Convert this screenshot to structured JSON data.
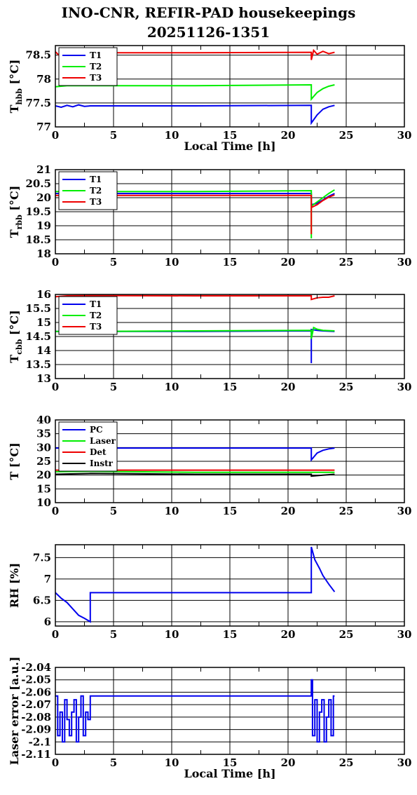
{
  "page": {
    "title_line1": "INO-CNR, REFIR-PAD housekeepings",
    "title_line2": "20251126-1351"
  },
  "chart_data": [
    {
      "type": "line",
      "ylabel": "T_hbb [°C]",
      "ylabel_main": "T",
      "ylabel_sub": "hbb",
      "ylabel_rest": "[°C]",
      "xlabel": "Local Time [h]",
      "xlim": [
        0,
        30
      ],
      "ylim": [
        77,
        78.7
      ],
      "yticks": [
        77,
        77.5,
        78,
        78.5
      ],
      "ytick_labels": [
        "77",
        "77.5",
        "78",
        "78.5"
      ],
      "xticks": [
        0,
        5,
        10,
        15,
        20,
        25,
        30
      ],
      "xtick_labels": [
        "0",
        "5",
        "10",
        "15",
        "20",
        "25",
        "30"
      ],
      "grid": true,
      "legend": "top-left",
      "series": [
        {
          "name": "T1",
          "color": "#0000ee",
          "points": [
            [
              0,
              77.44
            ],
            [
              0.5,
              77.41
            ],
            [
              1,
              77.45
            ],
            [
              1.5,
              77.42
            ],
            [
              2,
              77.46
            ],
            [
              2.5,
              77.43
            ],
            [
              3,
              77.44
            ],
            [
              12,
              77.44
            ],
            [
              22,
              77.45
            ],
            [
              22,
              77.08
            ],
            [
              22.5,
              77.25
            ],
            [
              23,
              77.37
            ],
            [
              23.5,
              77.42
            ],
            [
              24,
              77.45
            ]
          ]
        },
        {
          "name": "T2",
          "color": "#00ee00",
          "points": [
            [
              0,
              77.84
            ],
            [
              0.5,
              77.85
            ],
            [
              1,
              77.86
            ],
            [
              2,
              77.86
            ],
            [
              3,
              77.86
            ],
            [
              12,
              77.86
            ],
            [
              22,
              77.88
            ],
            [
              22,
              77.58
            ],
            [
              22.5,
              77.72
            ],
            [
              23,
              77.8
            ],
            [
              23.5,
              77.85
            ],
            [
              24,
              77.88
            ]
          ]
        },
        {
          "name": "T3",
          "color": "#ee0000",
          "points": [
            [
              0,
              78.57
            ],
            [
              0.3,
              78.5
            ],
            [
              0.6,
              78.55
            ],
            [
              1,
              78.55
            ],
            [
              3,
              78.55
            ],
            [
              12,
              78.55
            ],
            [
              22,
              78.56
            ],
            [
              22,
              78.4
            ],
            [
              22.2,
              78.6
            ],
            [
              22.5,
              78.52
            ],
            [
              23,
              78.58
            ],
            [
              23.5,
              78.53
            ],
            [
              24,
              78.56
            ]
          ]
        }
      ]
    },
    {
      "type": "line",
      "ylabel": "T_rbb [°C]",
      "ylabel_main": "T",
      "ylabel_sub": "rbb",
      "ylabel_rest": "[°C]",
      "xlabel": "",
      "xlim": [
        0,
        30
      ],
      "ylim": [
        18,
        21
      ],
      "yticks": [
        18,
        18.5,
        19,
        19.5,
        20,
        20.5,
        21
      ],
      "ytick_labels": [
        "18",
        "18.5",
        "19",
        "19.5",
        "20",
        "20.5",
        "21"
      ],
      "xticks": [
        0,
        5,
        10,
        15,
        20,
        25,
        30
      ],
      "xtick_labels": [
        "0",
        "5",
        "10",
        "15",
        "20",
        "25",
        "30"
      ],
      "grid": true,
      "legend": "top-left",
      "series": [
        {
          "name": "T1",
          "color": "#0000ee",
          "points": [
            [
              0,
              20.15
            ],
            [
              3,
              20.15
            ],
            [
              12,
              20.15
            ],
            [
              22,
              20.15
            ],
            [
              22,
              19.75
            ],
            [
              22.5,
              19.8
            ],
            [
              23,
              19.92
            ],
            [
              23.5,
              20.05
            ],
            [
              24,
              20.15
            ]
          ]
        },
        {
          "name": "T2",
          "color": "#00ee00",
          "points": [
            [
              0,
              20.22
            ],
            [
              1,
              20.22
            ],
            [
              2,
              20.9
            ],
            [
              3,
              20.9
            ],
            [
              3,
              20.22
            ],
            [
              12,
              20.22
            ],
            [
              22,
              20.25
            ],
            [
              22,
              18.55
            ],
            [
              22,
              19.7
            ],
            [
              22.5,
              19.85
            ],
            [
              23,
              20.0
            ],
            [
              23.5,
              20.15
            ],
            [
              24,
              20.28
            ]
          ]
        },
        {
          "name": "T3",
          "color": "#ee0000",
          "points": [
            [
              0,
              20.08
            ],
            [
              3,
              20.08
            ],
            [
              12,
              20.08
            ],
            [
              22,
              20.08
            ],
            [
              22,
              18.7
            ],
            [
              22,
              19.65
            ],
            [
              22.5,
              19.75
            ],
            [
              23,
              19.9
            ],
            [
              23.5,
              20.02
            ],
            [
              24,
              20.1
            ]
          ]
        }
      ]
    },
    {
      "type": "line",
      "ylabel": "T_cbb [°C]",
      "ylabel_main": "T",
      "ylabel_sub": "cbb",
      "ylabel_rest": "[°C]",
      "xlabel": "",
      "xlim": [
        0,
        30
      ],
      "ylim": [
        13,
        16
      ],
      "yticks": [
        13,
        13.5,
        14,
        14.5,
        15,
        15.5,
        16
      ],
      "ytick_labels": [
        "13",
        "13.5",
        "14",
        "14.5",
        "15",
        "15.5",
        "16"
      ],
      "xticks": [
        0,
        5,
        10,
        15,
        20,
        25,
        30
      ],
      "xtick_labels": [
        "0",
        "5",
        "10",
        "15",
        "20",
        "25",
        "30"
      ],
      "grid": true,
      "legend": "top-left",
      "series": [
        {
          "name": "T1",
          "color": "#0000ee",
          "points": [
            [
              0,
              14.68
            ],
            [
              3,
              14.68
            ],
            [
              12,
              14.68
            ],
            [
              22,
              14.7
            ],
            [
              22,
              13.55
            ],
            [
              22,
              14.75
            ],
            [
              22.5,
              14.72
            ],
            [
              23,
              14.7
            ],
            [
              24,
              14.68
            ]
          ]
        },
        {
          "name": "T2",
          "color": "#00ee00",
          "points": [
            [
              0,
              14.68
            ],
            [
              3,
              14.68
            ],
            [
              12,
              14.7
            ],
            [
              22,
              14.72
            ],
            [
              22,
              14.42
            ],
            [
              22.2,
              14.82
            ],
            [
              22.5,
              14.76
            ],
            [
              23,
              14.72
            ],
            [
              24,
              14.7
            ]
          ]
        },
        {
          "name": "T3",
          "color": "#ee0000",
          "points": [
            [
              0,
              15.92
            ],
            [
              1,
              15.95
            ],
            [
              3,
              15.96
            ],
            [
              12,
              15.95
            ],
            [
              22,
              15.95
            ],
            [
              22,
              15.82
            ],
            [
              22.5,
              15.88
            ],
            [
              23,
              15.9
            ],
            [
              23.5,
              15.9
            ],
            [
              24,
              15.95
            ]
          ]
        }
      ]
    },
    {
      "type": "line",
      "ylabel": "T [°C]",
      "ylabel_main": "T",
      "ylabel_sub": "",
      "ylabel_rest": "[°C]",
      "xlabel": "",
      "xlim": [
        0,
        30
      ],
      "ylim": [
        10,
        40
      ],
      "yticks": [
        10,
        15,
        20,
        25,
        30,
        35,
        40
      ],
      "ytick_labels": [
        "10",
        "15",
        "20",
        "25",
        "30",
        "35",
        "40"
      ],
      "xticks": [
        0,
        5,
        10,
        15,
        20,
        25,
        30
      ],
      "xtick_labels": [
        "0",
        "5",
        "10",
        "15",
        "20",
        "25",
        "30"
      ],
      "grid": true,
      "legend": "top-left",
      "series": [
        {
          "name": "PC",
          "color": "#0000ee",
          "points": [
            [
              0,
              29.8
            ],
            [
              12,
              29.8
            ],
            [
              22,
              29.8
            ],
            [
              22,
              25.5
            ],
            [
              22.5,
              28.0
            ],
            [
              23,
              29.0
            ],
            [
              23.5,
              29.5
            ],
            [
              24,
              29.8
            ]
          ]
        },
        {
          "name": "Laser",
          "color": "#00ee00",
          "points": [
            [
              0,
              21.2
            ],
            [
              3,
              21.4
            ],
            [
              12,
              21.0
            ],
            [
              22,
              21.0
            ],
            [
              24,
              21.0
            ]
          ]
        },
        {
          "name": "Det",
          "color": "#ee0000",
          "points": [
            [
              0,
              21.8
            ],
            [
              3,
              21.8
            ],
            [
              12,
              21.8
            ],
            [
              22,
              21.8
            ],
            [
              24,
              21.8
            ]
          ]
        },
        {
          "name": "Instr",
          "color": "#000000",
          "points": [
            [
              0,
              20.3
            ],
            [
              3,
              20.6
            ],
            [
              12,
              20.3
            ],
            [
              22,
              20.3
            ],
            [
              22,
              19.6
            ],
            [
              23,
              20.0
            ],
            [
              24,
              20.3
            ]
          ]
        }
      ]
    },
    {
      "type": "line",
      "ylabel": "RH [%]",
      "ylabel_main": "RH",
      "ylabel_sub": "",
      "ylabel_rest": "[%]",
      "xlabel": "",
      "xlim": [
        0,
        30
      ],
      "ylim": [
        5.9,
        7.8
      ],
      "yticks": [
        6,
        6.5,
        7,
        7.5
      ],
      "ytick_labels": [
        "6",
        "6.5",
        "7",
        "7.5"
      ],
      "xticks": [
        0,
        5,
        10,
        15,
        20,
        25,
        30
      ],
      "xtick_labels": [
        "0",
        "5",
        "10",
        "15",
        "20",
        "25",
        "30"
      ],
      "grid": true,
      "legend": "none",
      "series": [
        {
          "name": "",
          "color": "#0000ee",
          "points": [
            [
              0,
              6.68
            ],
            [
              0.5,
              6.55
            ],
            [
              1,
              6.45
            ],
            [
              1.5,
              6.3
            ],
            [
              2,
              6.15
            ],
            [
              2.5,
              6.08
            ],
            [
              3,
              6.0
            ],
            [
              3,
              6.68
            ],
            [
              22,
              6.68
            ],
            [
              22,
              7.75
            ],
            [
              22.3,
              7.45
            ],
            [
              22.7,
              7.25
            ],
            [
              23,
              7.08
            ],
            [
              23.5,
              6.88
            ],
            [
              24,
              6.7
            ]
          ]
        }
      ]
    },
    {
      "type": "line",
      "ylabel": "Laser error [a.u.]",
      "ylabel_main": "Laser error [a.u.]",
      "ylabel_sub": "",
      "ylabel_rest": "",
      "xlabel": "Local Time [h]",
      "xlim": [
        0,
        30
      ],
      "ylim": [
        -2.11,
        -2.04
      ],
      "yticks": [
        -2.11,
        -2.1,
        -2.09,
        -2.08,
        -2.07,
        -2.06,
        -2.05,
        -2.04
      ],
      "ytick_labels": [
        "-2.11",
        "-2.1",
        "-2.09",
        "-2.08",
        "-2.07",
        "-2.06",
        "-2.05",
        "-2.04"
      ],
      "xticks": [
        0,
        5,
        10,
        15,
        20,
        25,
        30
      ],
      "xtick_labels": [
        "0",
        "5",
        "10",
        "15",
        "20",
        "25",
        "30"
      ],
      "grid": true,
      "legend": "none",
      "series": [
        {
          "name": "",
          "color": "#0000ee",
          "points": [
            [
              0,
              -2.063
            ],
            [
              0.2,
              -2.063
            ],
            [
              0.2,
              -2.095
            ],
            [
              0.4,
              -2.095
            ],
            [
              0.4,
              -2.076
            ],
            [
              0.6,
              -2.076
            ],
            [
              0.6,
              -2.1
            ],
            [
              0.8,
              -2.1
            ],
            [
              0.8,
              -2.066
            ],
            [
              1.0,
              -2.066
            ],
            [
              1.0,
              -2.082
            ],
            [
              1.2,
              -2.082
            ],
            [
              1.2,
              -2.095
            ],
            [
              1.4,
              -2.095
            ],
            [
              1.4,
              -2.076
            ],
            [
              1.6,
              -2.076
            ],
            [
              1.6,
              -2.066
            ],
            [
              1.8,
              -2.066
            ],
            [
              1.8,
              -2.1
            ],
            [
              2.0,
              -2.1
            ],
            [
              2.0,
              -2.08
            ],
            [
              2.2,
              -2.08
            ],
            [
              2.2,
              -2.063
            ],
            [
              2.4,
              -2.063
            ],
            [
              2.4,
              -2.095
            ],
            [
              2.6,
              -2.095
            ],
            [
              2.6,
              -2.076
            ],
            [
              2.8,
              -2.076
            ],
            [
              2.8,
              -2.082
            ],
            [
              3.0,
              -2.082
            ],
            [
              3.0,
              -2.063
            ],
            [
              12,
              -2.063
            ],
            [
              22,
              -2.063
            ],
            [
              22,
              -2.05
            ],
            [
              22.1,
              -2.05
            ],
            [
              22.1,
              -2.095
            ],
            [
              22.3,
              -2.095
            ],
            [
              22.3,
              -2.066
            ],
            [
              22.5,
              -2.066
            ],
            [
              22.5,
              -2.1
            ],
            [
              22.7,
              -2.1
            ],
            [
              22.7,
              -2.076
            ],
            [
              22.9,
              -2.076
            ],
            [
              22.9,
              -2.066
            ],
            [
              23.1,
              -2.066
            ],
            [
              23.1,
              -2.1
            ],
            [
              23.3,
              -2.1
            ],
            [
              23.3,
              -2.08
            ],
            [
              23.5,
              -2.08
            ],
            [
              23.5,
              -2.066
            ],
            [
              23.7,
              -2.066
            ],
            [
              23.7,
              -2.095
            ],
            [
              23.9,
              -2.095
            ],
            [
              23.9,
              -2.063
            ],
            [
              24,
              -2.063
            ]
          ]
        }
      ]
    }
  ]
}
